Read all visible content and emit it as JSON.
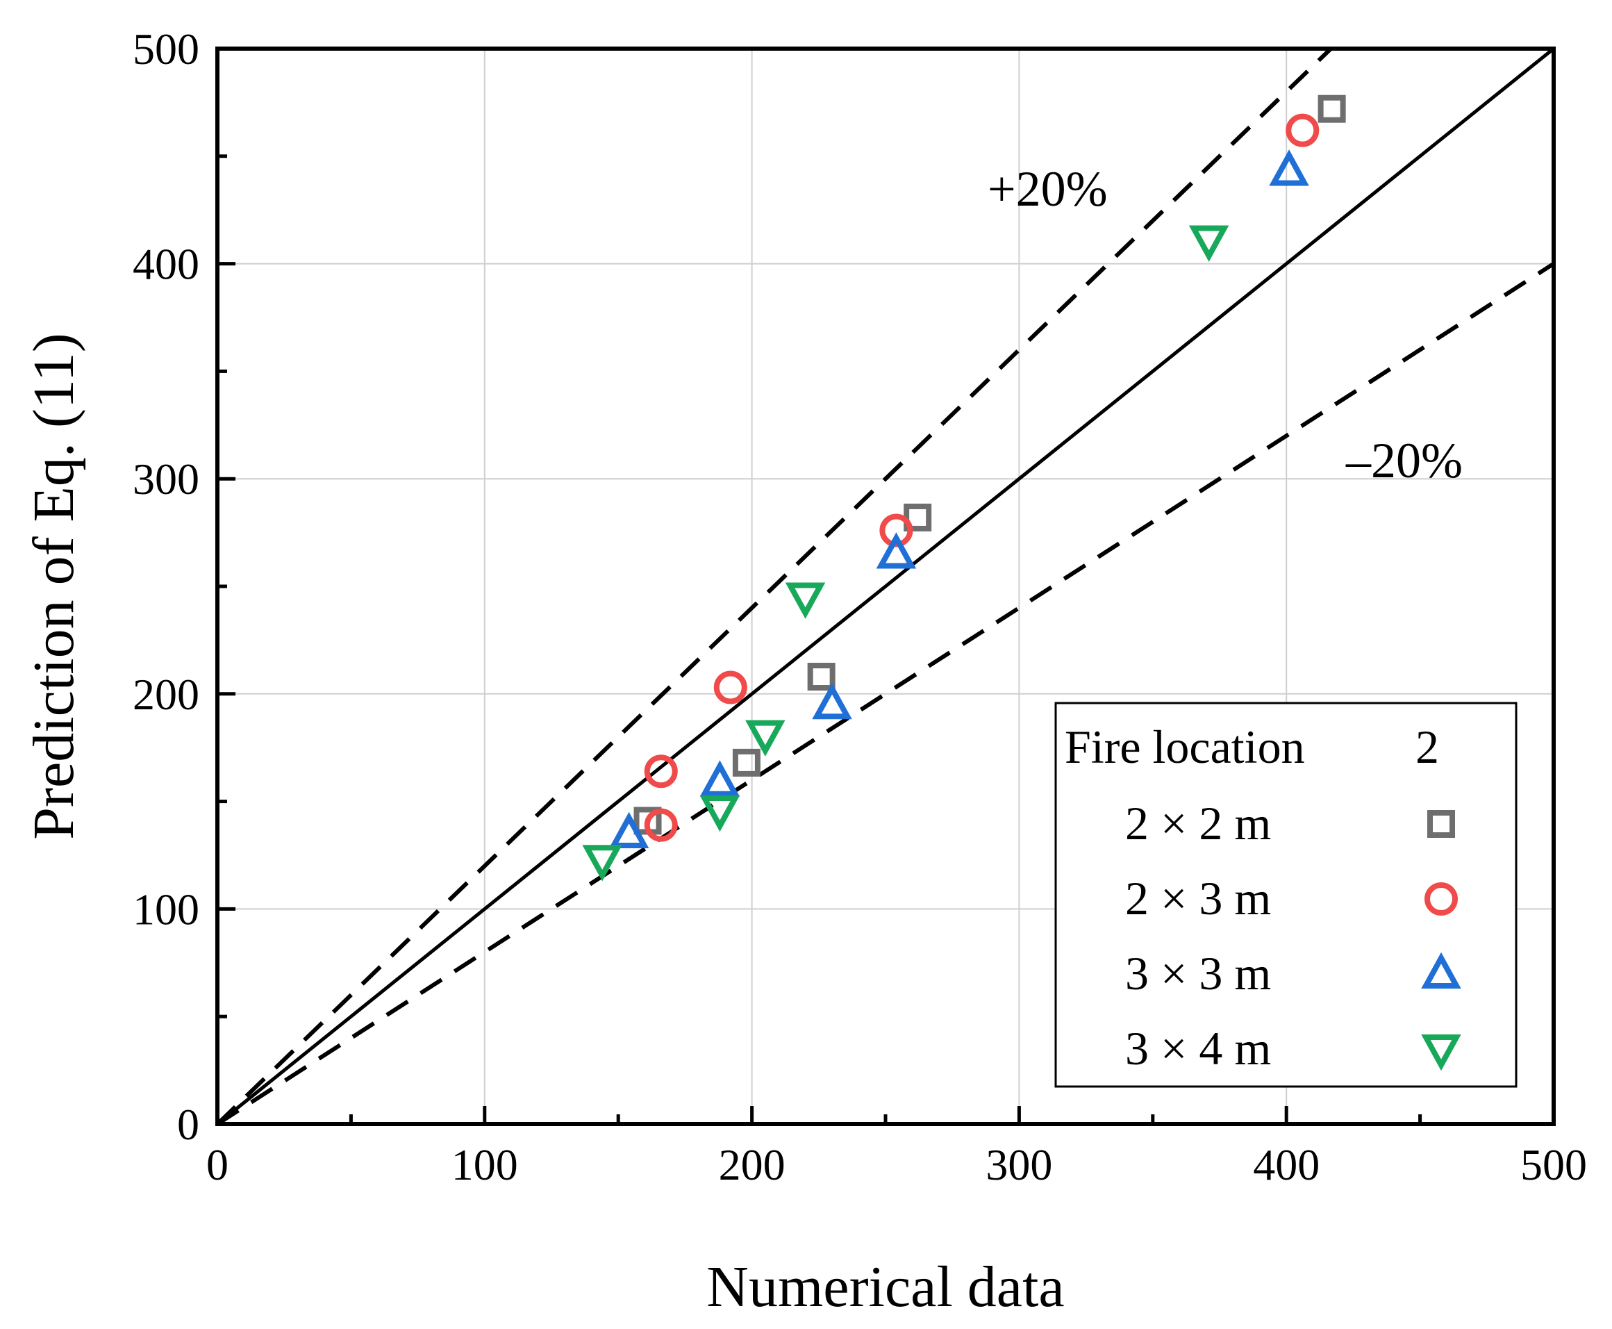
{
  "chart_data": {
    "type": "scatter",
    "title": "",
    "xlabel": "Numerical data",
    "ylabel": "Prediction of Eq. (11)",
    "xlim": [
      0,
      500
    ],
    "ylim": [
      0,
      500
    ],
    "xticks": [
      0,
      100,
      200,
      300,
      400,
      500
    ],
    "yticks": [
      0,
      100,
      200,
      300,
      400,
      500
    ],
    "minor_tick_step": 50,
    "grid": true,
    "reference_lines": [
      {
        "name": "y=x",
        "slope": 1.0,
        "style": "solid"
      },
      {
        "name": "+20%",
        "slope": 1.2,
        "style": "dashed",
        "label": "+20%"
      },
      {
        "name": "-20%",
        "slope": 0.8,
        "style": "dashed",
        "label": "–20%"
      }
    ],
    "legend": {
      "position": "bottom-right",
      "title": "Fire location",
      "title_value": "2"
    },
    "series": [
      {
        "name": "2 × 2 m",
        "marker": "square",
        "color": "#6e6e6e",
        "points": [
          [
            161,
            141
          ],
          [
            198,
            168
          ],
          [
            226,
            208
          ],
          [
            262,
            282
          ],
          [
            417,
            472
          ]
        ]
      },
      {
        "name": "2 × 3 m",
        "marker": "circle",
        "color": "#f04a4a",
        "points": [
          [
            166,
            164
          ],
          [
            166,
            139
          ],
          [
            192,
            203
          ],
          [
            254,
            276
          ],
          [
            406,
            462
          ]
        ]
      },
      {
        "name": "3 × 3 m",
        "marker": "triangle-up",
        "color": "#1f6fd6",
        "points": [
          [
            154,
            135
          ],
          [
            188,
            159
          ],
          [
            230,
            195
          ],
          [
            254,
            265
          ],
          [
            401,
            443
          ]
        ]
      },
      {
        "name": "3 × 4 m",
        "marker": "triangle-down",
        "color": "#18a85a",
        "points": [
          [
            144,
            123
          ],
          [
            188,
            146
          ],
          [
            205,
            181
          ],
          [
            220,
            245
          ],
          [
            371,
            411
          ]
        ]
      }
    ]
  }
}
